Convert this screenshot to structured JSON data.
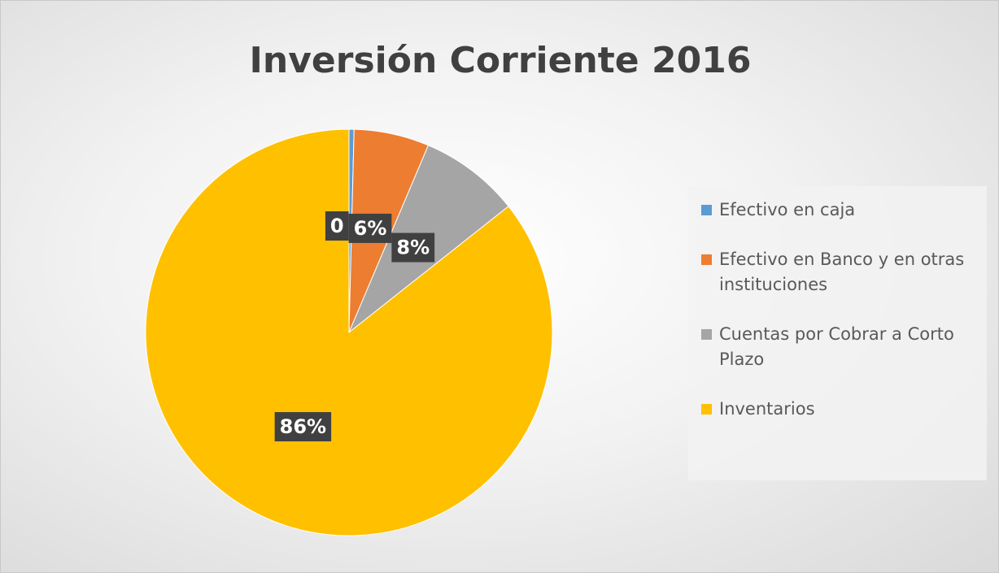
{
  "chart_data": {
    "type": "pie",
    "title": "Inversión Corriente 2016",
    "categories": [
      "Efectivo en caja",
      "Efectivo en Banco y en otras instituciones",
      "Cuentas por Cobrar a Corto Plazo",
      "Inventarios"
    ],
    "values": [
      0.4,
      6,
      8,
      86
    ],
    "value_labels": [
      "0",
      "6%",
      "8%",
      "86%"
    ],
    "colors": [
      "#5b9bd5",
      "#ed7d31",
      "#a5a5a5",
      "#ffc000"
    ],
    "legend": "right"
  }
}
